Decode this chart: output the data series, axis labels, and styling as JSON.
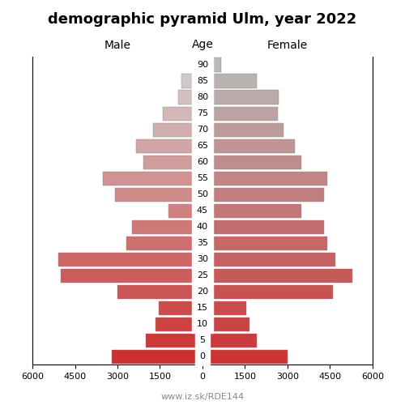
{
  "title": "demographic pyramid Ulm, year 2022",
  "label_male": "Male",
  "label_female": "Female",
  "label_age": "Age",
  "footer": "www.iz.sk/RDE144",
  "age_groups": [
    0,
    5,
    10,
    15,
    20,
    25,
    30,
    35,
    40,
    45,
    50,
    55,
    60,
    65,
    70,
    75,
    80,
    85,
    90
  ],
  "male": [
    3200,
    2000,
    1650,
    1550,
    3000,
    5000,
    5100,
    2700,
    2500,
    1200,
    3100,
    3500,
    2100,
    2350,
    1750,
    1400,
    850,
    750,
    300
  ],
  "female": [
    3000,
    1900,
    1650,
    1550,
    4600,
    5300,
    4700,
    4400,
    4300,
    3500,
    4300,
    4400,
    3500,
    3250,
    2850,
    2650,
    2700,
    1900,
    650
  ],
  "xlim": 6000,
  "color_young_male": [
    204,
    48,
    48
  ],
  "color_old_male": [
    210,
    210,
    210
  ],
  "color_young_female": [
    205,
    53,
    53
  ],
  "color_old_female": [
    185,
    185,
    185
  ],
  "bar_height": 0.85,
  "tick_fontsize": 8,
  "title_fontsize": 13,
  "label_fontsize": 10,
  "xticks": [
    0,
    1500,
    3000,
    4500,
    6000
  ]
}
